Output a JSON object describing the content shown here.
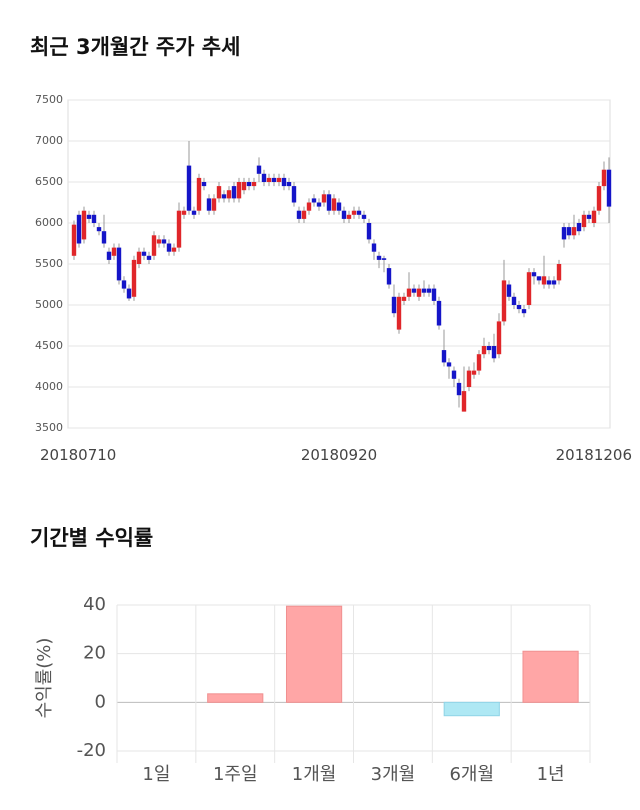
{
  "chart_data": [
    {
      "type": "candlestick",
      "title": "최근 3개월간 주가 추세",
      "categories": [
        "20180710",
        null,
        null,
        null,
        null,
        null,
        null,
        null,
        null,
        null,
        null,
        null,
        null,
        null,
        null,
        null,
        null,
        null,
        null,
        null,
        null,
        null,
        null,
        null,
        null,
        null,
        null,
        null,
        null,
        null,
        null,
        null,
        null,
        null,
        null,
        null,
        null,
        null,
        null,
        null,
        null,
        null,
        null,
        null,
        null,
        null,
        null,
        null,
        null,
        null,
        null,
        null,
        null,
        "20180920",
        null,
        null,
        null,
        null,
        null,
        null,
        null,
        null,
        null,
        null,
        null,
        null,
        null,
        null,
        null,
        null,
        null,
        null,
        null,
        null,
        null,
        null,
        null,
        null,
        null,
        null,
        null,
        null,
        null,
        null,
        null,
        null,
        null,
        null,
        null,
        null,
        null,
        null,
        null,
        null,
        null,
        null,
        null,
        null,
        null,
        null,
        null,
        null,
        null,
        null,
        null,
        null,
        null,
        "20181206"
      ],
      "open": [
        5600,
        6100,
        5800,
        6100,
        6100,
        5950,
        5900,
        5650,
        5600,
        5700,
        5300,
        5200,
        5100,
        5500,
        5650,
        5600,
        5600,
        5750,
        5800,
        5750,
        5650,
        5700,
        6100,
        6700,
        6150,
        6150,
        6500,
        6300,
        6150,
        6300,
        6350,
        6300,
        6450,
        6300,
        6400,
        6500,
        6450,
        6700,
        6600,
        6500,
        6550,
        6500,
        6550,
        6500,
        6450,
        6150,
        6050,
        6150,
        6300,
        6250,
        6250,
        6350,
        6150,
        6250,
        6150,
        6050,
        6100,
        6150,
        6100,
        6000,
        5750,
        5600,
        5570,
        5450,
        5100,
        4700,
        5050,
        5100,
        5200,
        5100,
        5200,
        5200,
        5200,
        5050,
        4450,
        4300,
        4200,
        4050,
        3700,
        4000,
        4150,
        4200,
        4400,
        4500,
        4500,
        4400,
        4800,
        5250,
        5100,
        5000,
        4950,
        5000,
        5400,
        5350,
        5250,
        5300,
        5300,
        5300,
        5950,
        5950,
        5850,
        6000,
        5950,
        6100,
        6000,
        6150,
        6450,
        6650
      ],
      "high": [
        6030,
        6150,
        6200,
        6150,
        6150,
        6000,
        6100,
        5700,
        5750,
        5750,
        5350,
        5250,
        5600,
        5700,
        5700,
        5650,
        5900,
        5850,
        5850,
        5800,
        5750,
        6250,
        6200,
        7000,
        6200,
        6600,
        6550,
        6350,
        6350,
        6500,
        6400,
        6450,
        6500,
        6550,
        6550,
        6550,
        6550,
        6800,
        6650,
        6600,
        6600,
        6600,
        6600,
        6550,
        6500,
        6200,
        6200,
        6300,
        6350,
        6300,
        6400,
        6400,
        6350,
        6300,
        6200,
        6150,
        6200,
        6200,
        6150,
        6050,
        5800,
        5650,
        5600,
        5500,
        5250,
        5150,
        5150,
        5400,
        5250,
        5250,
        5300,
        5250,
        5250,
        5100,
        4700,
        4350,
        4250,
        4100,
        4250,
        4250,
        4300,
        4450,
        4600,
        4550,
        4650,
        4900,
        5550,
        5300,
        5150,
        5050,
        5000,
        5450,
        5450,
        5350,
        5600,
        5350,
        5350,
        5550,
        6000,
        6000,
        6100,
        6050,
        6150,
        6150,
        6200,
        6500,
        6750,
        6800
      ],
      "low": [
        5550,
        5700,
        5750,
        6000,
        5950,
        5850,
        5700,
        5500,
        5550,
        5250,
        5150,
        5050,
        5050,
        5450,
        5550,
        5500,
        5550,
        5700,
        5700,
        5600,
        5600,
        5650,
        6050,
        6100,
        6050,
        6100,
        6400,
        6100,
        6100,
        6250,
        6250,
        6250,
        6250,
        6250,
        6350,
        6400,
        6400,
        6500,
        6450,
        6450,
        6450,
        6450,
        6400,
        6400,
        6200,
        6000,
        6000,
        6100,
        6200,
        6150,
        6200,
        6100,
        6100,
        6100,
        6000,
        6000,
        6050,
        6050,
        6000,
        5750,
        5550,
        5450,
        5400,
        5200,
        4850,
        4650,
        5000,
        5050,
        5100,
        5050,
        5100,
        5100,
        5000,
        4700,
        4250,
        4100,
        4000,
        3750,
        3700,
        3950,
        4100,
        4150,
        4350,
        4400,
        4300,
        4350,
        4750,
        5050,
        4950,
        4900,
        4850,
        4950,
        5250,
        5250,
        5200,
        5200,
        5200,
        5250,
        5700,
        5800,
        5800,
        5850,
        5900,
        6000,
        5950,
        6100,
        6400,
        6000
      ],
      "close": [
        5980,
        5750,
        6150,
        6050,
        6000,
        5900,
        5750,
        5550,
        5700,
        5300,
        5200,
        5080,
        5550,
        5650,
        5600,
        5550,
        5850,
        5800,
        5750,
        5650,
        5700,
        6150,
        6150,
        6150,
        6100,
        6550,
        6450,
        6150,
        6300,
        6450,
        6300,
        6400,
        6300,
        6500,
        6500,
        6450,
        6500,
        6600,
        6500,
        6550,
        6500,
        6550,
        6450,
        6450,
        6250,
        6050,
        6150,
        6250,
        6250,
        6200,
        6350,
        6150,
        6300,
        6150,
        6050,
        6100,
        6150,
        6100,
        6050,
        5800,
        5650,
        5550,
        5550,
        5250,
        4900,
        5100,
        5100,
        5200,
        5150,
        5200,
        5150,
        5150,
        5050,
        4750,
        4300,
        4250,
        4100,
        3900,
        3950,
        4200,
        4200,
        4400,
        4500,
        4450,
        4350,
        4800,
        5300,
        5100,
        5000,
        4950,
        4900,
        5400,
        5350,
        5300,
        5350,
        5250,
        5250,
        5500,
        5800,
        5850,
        5950,
        5900,
        6100,
        6050,
        6150,
        6450,
        6650,
        6200
      ],
      "up_color": "#e0262a",
      "down_color": "#1515c8",
      "ylim": [
        3500,
        7500
      ],
      "yticks": [
        3500,
        4000,
        4500,
        5000,
        5500,
        6000,
        6500,
        7000,
        7500
      ],
      "grid": true
    },
    {
      "type": "bar",
      "title": "기간별 수익률",
      "ylabel": "수익률(%)",
      "categories": [
        "1일",
        "1주일",
        "1개월",
        "3개월",
        "6개월",
        "1년"
      ],
      "values": [
        0,
        3.5,
        39.5,
        0,
        -5.5,
        21
      ],
      "positive_color": "#ffa6a6",
      "negative_color": "#aee8f4",
      "ylim": [
        -20,
        40
      ],
      "yticks": [
        -20,
        0,
        20,
        40
      ],
      "grid": true
    }
  ]
}
